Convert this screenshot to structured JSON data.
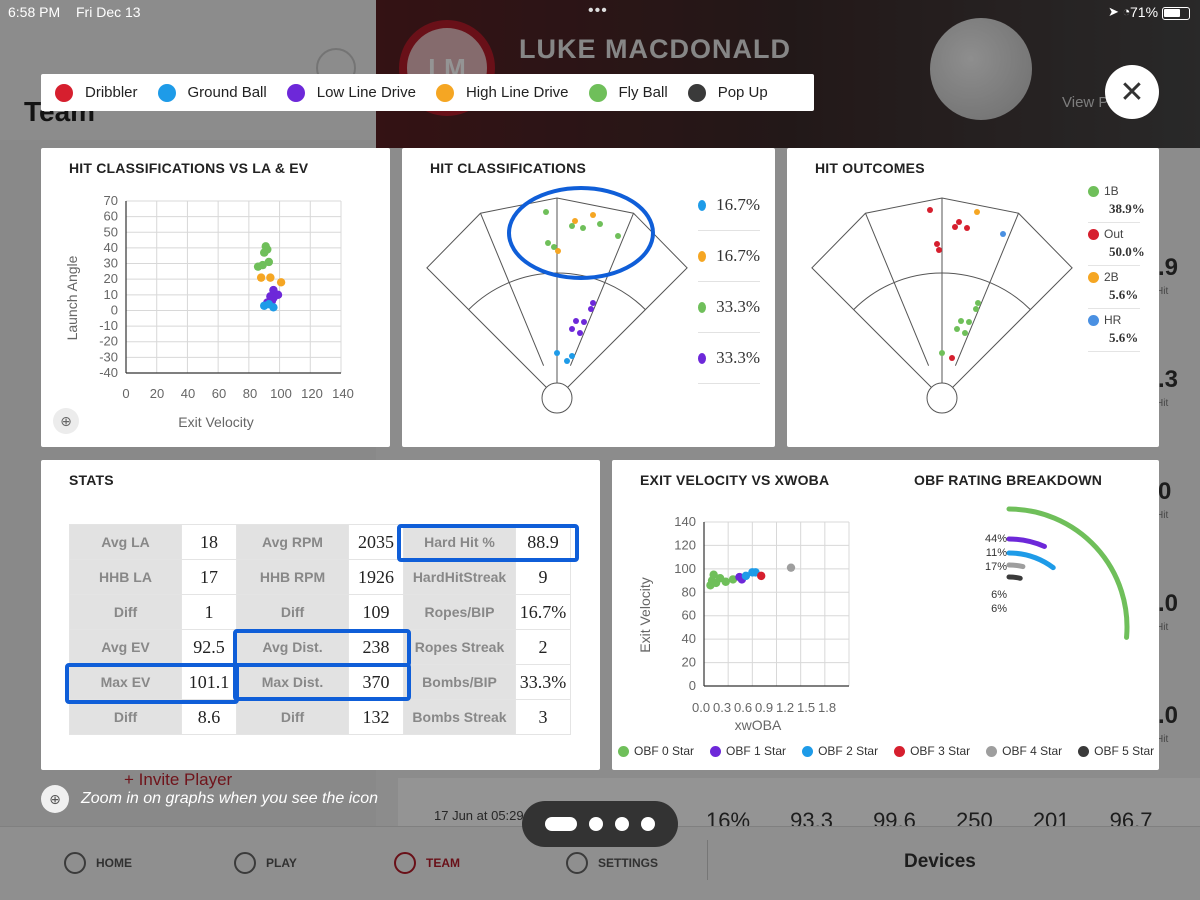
{
  "status_bar": {
    "time": "6:58 PM",
    "date": "Fri Dec 13",
    "battery": "71%",
    "battery_fraction": 0.71
  },
  "background": {
    "team_title": "Team",
    "player_initials": "LM",
    "player_name": "LUKE MACDONALD",
    "view_link": "View P",
    "invite_label": "Invite Player",
    "recent_date": "17 Jun at 05:29 PM",
    "recent_values": "16% 93.3 99.6 250 201 96.7",
    "side_numbers": [
      ".9",
      ".3",
      "0",
      ".0",
      ".0",
      ".0"
    ],
    "side_sub": "Hit",
    "nav": {
      "home": "HOME",
      "play": "PLAY",
      "team": "TEAM",
      "settings": "SETTINGS",
      "devices": "Devices"
    }
  },
  "legend": [
    {
      "label": "Dribbler",
      "color": "#d61f2e"
    },
    {
      "label": "Ground Ball",
      "color": "#1e9be8"
    },
    {
      "label": "Low Line Drive",
      "color": "#6d28d9"
    },
    {
      "label": "High Line Drive",
      "color": "#f5a623"
    },
    {
      "label": "Fly Ball",
      "color": "#6fbf5a"
    },
    {
      "label": "Pop Up",
      "color": "#3a3a3a"
    }
  ],
  "cards": {
    "la_ev": {
      "title": "HIT CLASSIFICATIONS VS LA & EV"
    },
    "hit_class": {
      "title": "HIT CLASSIFICATIONS"
    },
    "hit_outcomes": {
      "title": "HIT OUTCOMES"
    },
    "stats": {
      "title": "STATS"
    },
    "ev_xwoba": {
      "title": "EXIT VELOCITY VS XWOBA"
    },
    "obf": {
      "title": "OBF RATING BREAKDOWN"
    }
  },
  "hit_class_pcts": [
    {
      "value": "16.7%",
      "color": "#1e9be8"
    },
    {
      "value": "16.7%",
      "color": "#f5a623"
    },
    {
      "value": "33.3%",
      "color": "#6fbf5a"
    },
    {
      "value": "33.3%",
      "color": "#6d28d9"
    }
  ],
  "hit_outcomes_list": [
    {
      "label": "1B",
      "value": "38.9%",
      "color": "#6fbf5a"
    },
    {
      "label": "Out",
      "value": "50.0%",
      "color": "#d61f2e"
    },
    {
      "label": "2B",
      "value": "5.6%",
      "color": "#f5a623"
    },
    {
      "label": "HR",
      "value": "5.6%",
      "color": "#4a90e2"
    }
  ],
  "stats_table": [
    [
      "Avg LA",
      "18",
      "Avg RPM",
      "2035",
      "Hard Hit %",
      "88.9"
    ],
    [
      "HHB LA",
      "17",
      "HHB RPM",
      "1926",
      "HardHitStreak",
      "9"
    ],
    [
      "Diff",
      "1",
      "Diff",
      "109",
      "Ropes/BIP",
      "16.7%"
    ],
    [
      "Avg EV",
      "92.5",
      "Avg Dist.",
      "238",
      "Ropes Streak",
      "2"
    ],
    [
      "Max EV",
      "101.1",
      "Max Dist.",
      "370",
      "Bombs/BIP",
      "33.3%"
    ],
    [
      "Diff",
      "8.6",
      "Diff",
      "132",
      "Bombs Streak",
      "3"
    ]
  ],
  "ev_legend": [
    {
      "label": "OBF 0 Star",
      "color": "#6fbf5a"
    },
    {
      "label": "OBF 1 Star",
      "color": "#6d28d9"
    },
    {
      "label": "OBF 2 Star",
      "color": "#1e9be8"
    },
    {
      "label": "OBF 3 Star",
      "color": "#d61f2e"
    },
    {
      "label": "OBF 4 Star",
      "color": "#9e9e9e"
    },
    {
      "label": "OBF 5 Star",
      "color": "#3a3a3a"
    }
  ],
  "tip_text": "Zoom in on graphs when you see the icon",
  "chart_data": [
    {
      "type": "scatter",
      "id": "la_ev",
      "title": "HIT CLASSIFICATIONS VS LA & EV",
      "xlabel": "Exit Velocity",
      "ylabel": "Launch Angle",
      "xlim": [
        0,
        140
      ],
      "ylim": [
        -40,
        70
      ],
      "xticks": [
        "0",
        "20",
        "40",
        "60",
        "80",
        "100",
        "120",
        "140"
      ],
      "yticks": [
        "70",
        "60",
        "50",
        "40",
        "30",
        "20",
        "10",
        "0",
        "-10",
        "-20",
        "-30",
        "-40"
      ],
      "points": [
        {
          "x": 91,
          "y": 41,
          "color": "#6fbf5a"
        },
        {
          "x": 90,
          "y": 37,
          "color": "#6fbf5a"
        },
        {
          "x": 92,
          "y": 39,
          "color": "#6fbf5a"
        },
        {
          "x": 89,
          "y": 29,
          "color": "#6fbf5a"
        },
        {
          "x": 93,
          "y": 31,
          "color": "#6fbf5a"
        },
        {
          "x": 86,
          "y": 28,
          "color": "#6fbf5a"
        },
        {
          "x": 88,
          "y": 21,
          "color": "#f5a623"
        },
        {
          "x": 94,
          "y": 21,
          "color": "#f5a623"
        },
        {
          "x": 101,
          "y": 18,
          "color": "#f5a623"
        },
        {
          "x": 96,
          "y": 13,
          "color": "#6d28d9"
        },
        {
          "x": 99,
          "y": 10,
          "color": "#6d28d9"
        },
        {
          "x": 94,
          "y": 9,
          "color": "#6d28d9"
        },
        {
          "x": 96,
          "y": 8,
          "color": "#6d28d9"
        },
        {
          "x": 92,
          "y": 5,
          "color": "#6d28d9"
        },
        {
          "x": 95,
          "y": 6,
          "color": "#6d28d9"
        },
        {
          "x": 90,
          "y": 3,
          "color": "#1e9be8"
        },
        {
          "x": 96,
          "y": 2,
          "color": "#1e9be8"
        },
        {
          "x": 93,
          "y": 4,
          "color": "#1e9be8"
        }
      ]
    },
    {
      "type": "scatter",
      "id": "ev_xwoba",
      "title": "EXIT VELOCITY VS XWOBA",
      "xlabel": "xwOBA",
      "ylabel": "Exit Velocity",
      "xlim": [
        0,
        1.8
      ],
      "ylim": [
        0,
        140
      ],
      "xticks": [
        "0.0",
        "0.3",
        "0.6",
        "0.9",
        "1.2",
        "1.5",
        "1.8"
      ],
      "yticks": [
        "140",
        "120",
        "100",
        "80",
        "60",
        "40",
        "20",
        "0"
      ],
      "points": [
        {
          "x": 0.08,
          "y": 86,
          "color": "#6fbf5a"
        },
        {
          "x": 0.1,
          "y": 90,
          "color": "#6fbf5a"
        },
        {
          "x": 0.12,
          "y": 95,
          "color": "#6fbf5a"
        },
        {
          "x": 0.15,
          "y": 88,
          "color": "#6fbf5a"
        },
        {
          "x": 0.2,
          "y": 92,
          "color": "#6fbf5a"
        },
        {
          "x": 0.27,
          "y": 89,
          "color": "#6fbf5a"
        },
        {
          "x": 0.36,
          "y": 91,
          "color": "#6fbf5a"
        },
        {
          "x": 0.44,
          "y": 93,
          "color": "#6d28d9"
        },
        {
          "x": 0.47,
          "y": 91,
          "color": "#6d28d9"
        },
        {
          "x": 0.52,
          "y": 94,
          "color": "#1e9be8"
        },
        {
          "x": 0.6,
          "y": 97,
          "color": "#1e9be8"
        },
        {
          "x": 0.64,
          "y": 97,
          "color": "#1e9be8"
        },
        {
          "x": 0.71,
          "y": 94,
          "color": "#d61f2e"
        },
        {
          "x": 1.08,
          "y": 101,
          "color": "#9e9e9e"
        }
      ]
    },
    {
      "type": "radial-bar",
      "id": "obf",
      "title": "OBF RATING BREAKDOWN",
      "series": [
        {
          "label": "44%",
          "value": 44,
          "color": "#6fbf5a"
        },
        {
          "label": "11%",
          "value": 11,
          "color": "#6d28d9"
        },
        {
          "label": "17%",
          "value": 17,
          "color": "#1e9be8"
        },
        {
          "label": "6%",
          "value": 6,
          "color": "#9e9e9e"
        },
        {
          "label": "6%",
          "value": 6,
          "color": "#3a3a3a"
        }
      ]
    },
    {
      "type": "spray",
      "id": "hit_class",
      "title": "HIT CLASSIFICATIONS"
    },
    {
      "type": "spray",
      "id": "hit_outcomes",
      "title": "HIT OUTCOMES"
    }
  ]
}
